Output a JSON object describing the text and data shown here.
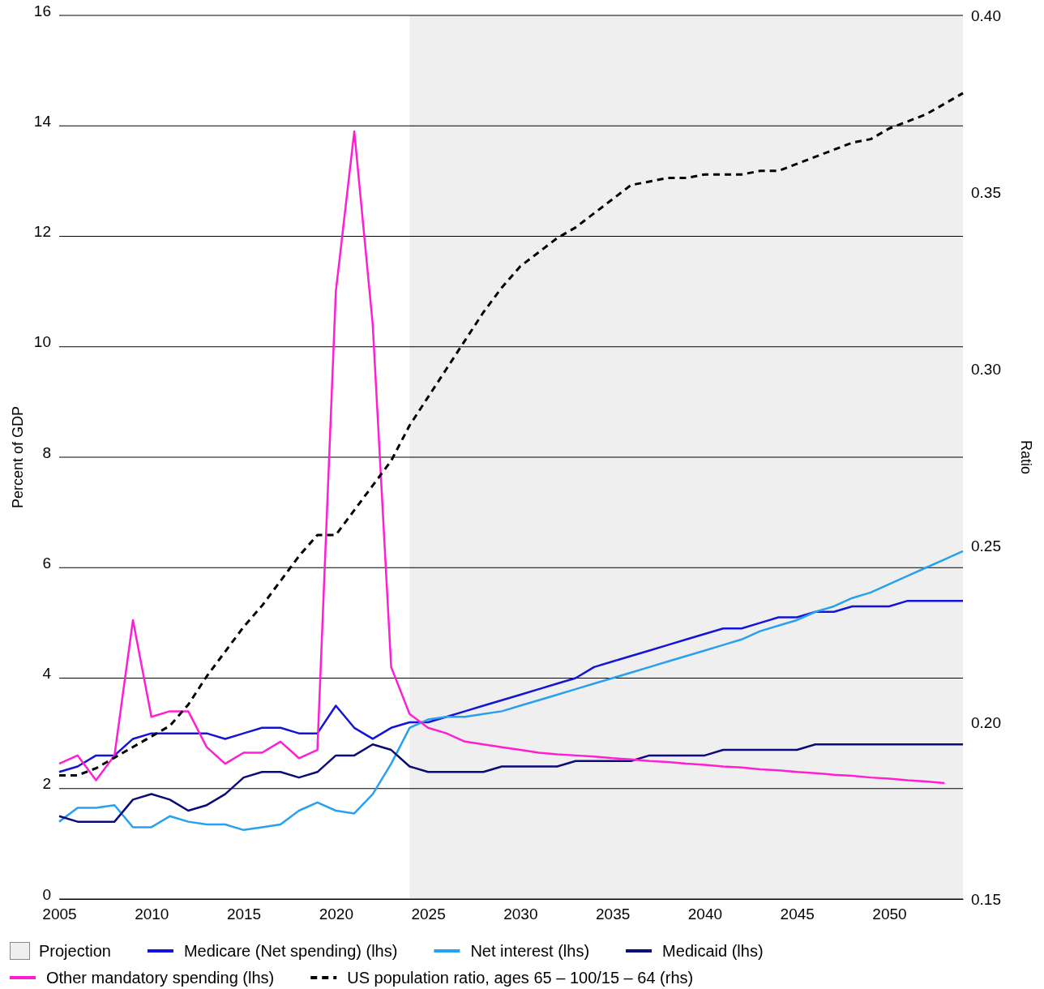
{
  "chart_data": {
    "type": "line",
    "ylabel": "Percent of GDP",
    "y2label": "Ratio",
    "x": [
      2005,
      2006,
      2007,
      2008,
      2009,
      2010,
      2011,
      2012,
      2013,
      2014,
      2015,
      2016,
      2017,
      2018,
      2019,
      2020,
      2021,
      2022,
      2023,
      2024,
      2025,
      2026,
      2027,
      2028,
      2029,
      2030,
      2031,
      2032,
      2033,
      2034,
      2035,
      2036,
      2037,
      2038,
      2039,
      2040,
      2041,
      2042,
      2043,
      2044,
      2045,
      2046,
      2047,
      2048,
      2049,
      2050,
      2051,
      2052,
      2053,
      2054
    ],
    "xlim": [
      2005,
      2054
    ],
    "xticks": [
      2005,
      2010,
      2015,
      2020,
      2025,
      2030,
      2035,
      2040,
      2045,
      2050
    ],
    "ylim": [
      0,
      16
    ],
    "yticks": [
      0,
      2,
      4,
      6,
      8,
      10,
      12,
      14,
      16
    ],
    "y2lim": [
      0.15,
      0.4
    ],
    "y2ticks": [
      {
        "value": 0.15,
        "label": "0.15"
      },
      {
        "value": 0.2,
        "label": "0.20"
      },
      {
        "value": 0.25,
        "label": "0.25"
      },
      {
        "value": 0.3,
        "label": "0.30"
      },
      {
        "value": 0.35,
        "label": "0.35"
      },
      {
        "value": 0.4,
        "label": "0.40"
      }
    ],
    "grid": "y",
    "legend": "bottom",
    "marker": "none",
    "bands": [
      {
        "axis": "x",
        "from": 2024,
        "to": 2054,
        "label": "Projection",
        "color": "#efefef"
      }
    ],
    "series": [
      {
        "name": "Medicare (Net spending) (lhs)",
        "color": "#1414d9",
        "values": [
          2.3,
          2.4,
          2.6,
          2.6,
          2.9,
          3.0,
          3.0,
          3.0,
          3.0,
          2.9,
          3.0,
          3.1,
          3.1,
          3.0,
          3.0,
          3.5,
          3.1,
          2.9,
          3.1,
          3.2,
          3.2,
          3.3,
          3.4,
          3.5,
          3.6,
          3.7,
          3.8,
          3.9,
          4.0,
          4.2,
          4.3,
          4.4,
          4.5,
          4.6,
          4.7,
          4.8,
          4.9,
          4.9,
          5.0,
          5.1,
          5.1,
          5.2,
          5.2,
          5.3,
          5.3,
          5.3,
          5.4,
          5.4,
          5.4,
          5.4
        ]
      },
      {
        "name": "Net interest (lhs)",
        "color": "#28a0f0",
        "values": [
          1.4,
          1.65,
          1.65,
          1.7,
          1.3,
          1.3,
          1.5,
          1.4,
          1.35,
          1.35,
          1.25,
          1.3,
          1.35,
          1.6,
          1.75,
          1.6,
          1.55,
          1.9,
          2.45,
          3.1,
          3.25,
          3.3,
          3.3,
          3.35,
          3.4,
          3.5,
          3.6,
          3.7,
          3.8,
          3.9,
          4.0,
          4.1,
          4.2,
          4.3,
          4.4,
          4.5,
          4.6,
          4.7,
          4.85,
          4.95,
          5.05,
          5.2,
          5.3,
          5.45,
          5.55,
          5.7,
          5.85,
          6.0,
          6.15,
          6.3
        ]
      },
      {
        "name": "Medicaid (lhs)",
        "color": "#0a0a78",
        "values": [
          1.5,
          1.4,
          1.4,
          1.4,
          1.8,
          1.9,
          1.8,
          1.6,
          1.7,
          1.9,
          2.2,
          2.3,
          2.3,
          2.2,
          2.3,
          2.6,
          2.6,
          2.8,
          2.7,
          2.4,
          2.3,
          2.3,
          2.3,
          2.3,
          2.4,
          2.4,
          2.4,
          2.4,
          2.5,
          2.5,
          2.5,
          2.5,
          2.6,
          2.6,
          2.6,
          2.6,
          2.7,
          2.7,
          2.7,
          2.7,
          2.7,
          2.8,
          2.8,
          2.8,
          2.8,
          2.8,
          2.8,
          2.8,
          2.8,
          2.8
        ]
      },
      {
        "name": "Other mandatory spending (lhs)",
        "color": "#ff1ed2",
        "values": [
          2.45,
          2.6,
          2.15,
          2.6,
          5.05,
          3.3,
          3.4,
          3.4,
          2.75,
          2.45,
          2.65,
          2.65,
          2.85,
          2.55,
          2.7,
          11.0,
          13.9,
          10.4,
          4.2,
          3.35,
          3.1,
          3.0,
          2.85,
          2.8,
          2.75,
          2.7,
          2.65,
          2.62,
          2.6,
          2.58,
          2.55,
          2.53,
          2.5,
          2.48,
          2.45,
          2.43,
          2.4,
          2.38,
          2.35,
          2.33,
          2.3,
          2.28,
          2.25,
          2.23,
          2.2,
          2.18,
          2.15,
          2.13,
          2.1,
          null
        ]
      },
      {
        "name": "US population ratio, ages 65 – 100/15 – 64 (rhs)",
        "color": "#000000",
        "axis": "y2",
        "line_style": "dashed",
        "values": [
          0.185,
          0.185,
          0.187,
          0.19,
          0.193,
          0.196,
          0.199,
          0.205,
          0.213,
          0.22,
          0.227,
          0.233,
          0.24,
          0.247,
          0.253,
          0.253,
          0.26,
          0.267,
          0.274,
          0.284,
          0.292,
          0.3,
          0.308,
          0.316,
          0.323,
          0.329,
          0.333,
          0.337,
          0.34,
          0.344,
          0.348,
          0.352,
          0.353,
          0.354,
          0.354,
          0.355,
          0.355,
          0.355,
          0.356,
          0.356,
          0.358,
          0.36,
          0.362,
          0.364,
          0.365,
          0.368,
          0.37,
          0.372,
          0.375,
          0.378
        ]
      }
    ]
  }
}
